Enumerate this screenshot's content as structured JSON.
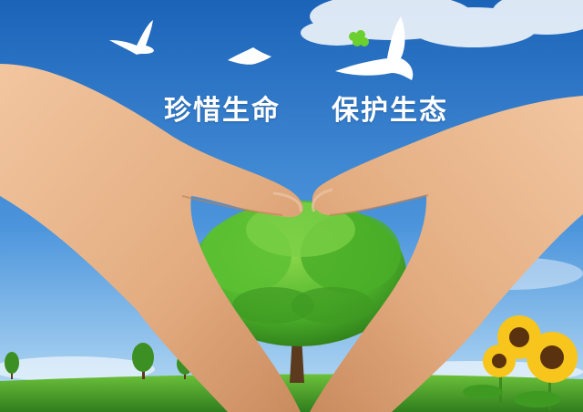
{
  "poster": {
    "slogan_left": "珍惜生命",
    "slogan_right": "保护生态"
  },
  "colors": {
    "sky_top": "#1f6fc4",
    "sky_bottom": "#bfe0f6",
    "grass": "#3f9a2a",
    "tree": "#4fb52c",
    "skin": "#e8b48a",
    "sunflower_petal": "#f7c51b",
    "sunflower_center": "#5a3210"
  },
  "icons": {
    "bird": "dove-icon",
    "clover": "clover-icon",
    "sunflower": "sunflower-icon"
  }
}
